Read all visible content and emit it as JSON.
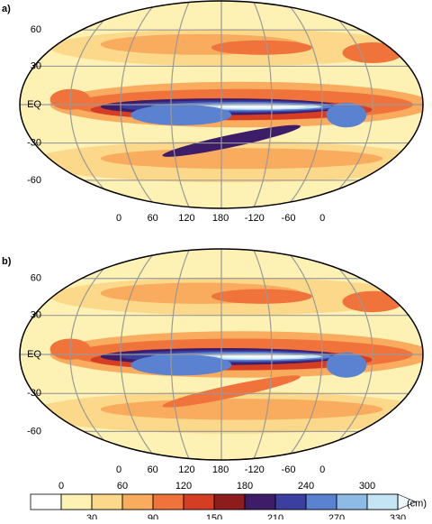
{
  "panels": [
    {
      "label": "a)",
      "lat_labels": [
        "60",
        "30",
        "EQ",
        "-30",
        "-60"
      ],
      "lon_labels": [
        "0",
        "60",
        "120",
        "180",
        "-120",
        "-60",
        "0"
      ]
    },
    {
      "label": "b)",
      "lat_labels": [
        "60",
        "30",
        "EQ",
        "-30",
        "-60"
      ],
      "lon_labels": [
        "0",
        "60",
        "120",
        "180",
        "-120",
        "-60",
        "0"
      ]
    }
  ],
  "colorbar": {
    "ticks": [
      0,
      30,
      60,
      90,
      120,
      150,
      180,
      210,
      240,
      270,
      300,
      330
    ],
    "colors": [
      "#fdf2b4",
      "#fcd98a",
      "#f9ab5e",
      "#f0733c",
      "#d63e24",
      "#8e1c1c",
      "#3d1c68",
      "#3a3fa0",
      "#5b82d0",
      "#8dbbe6",
      "#c6e5f4",
      "#eef8fc"
    ],
    "unit": "(cm)"
  }
}
